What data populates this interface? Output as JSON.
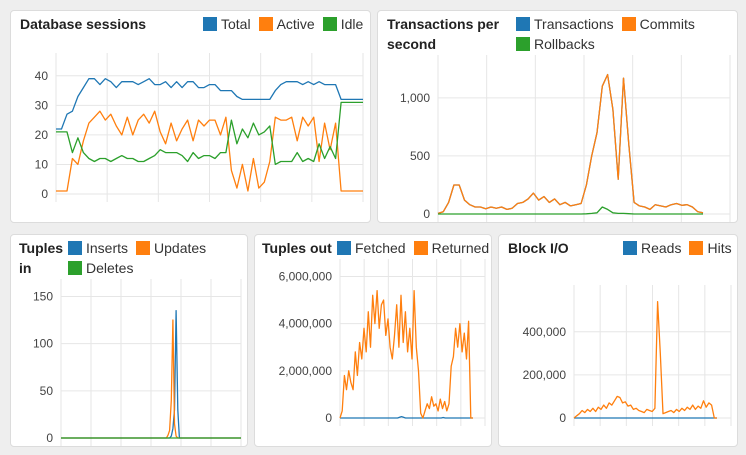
{
  "colors": {
    "blue": "#1f77b4",
    "orange": "#ff7f0e",
    "green": "#2ca02c"
  },
  "chart_data": [
    {
      "id": "sessions",
      "type": "line",
      "title": "Database sessions",
      "ylim": [
        0,
        45
      ],
      "yticks": [
        {
          "v": 0,
          "label": "0"
        },
        {
          "v": 10,
          "label": "10"
        },
        {
          "v": 20,
          "label": "20"
        },
        {
          "v": 30,
          "label": "30"
        },
        {
          "v": 40,
          "label": "40"
        }
      ],
      "grid": true,
      "legend_position": "top-right",
      "series": [
        {
          "name": "Total",
          "color": "#1f77b4",
          "values": [
            22,
            22,
            27,
            28,
            33,
            36,
            39,
            39,
            37,
            39,
            38,
            36,
            38,
            38,
            38,
            37,
            38,
            39,
            37,
            37,
            38,
            36,
            38,
            36,
            38,
            38,
            36,
            36,
            37,
            37,
            35,
            35,
            35,
            33,
            32,
            32,
            32,
            32,
            32,
            32,
            35,
            37,
            38,
            38,
            38,
            37,
            38,
            37,
            38,
            37,
            37,
            37,
            32,
            32,
            32,
            32,
            32
          ]
        },
        {
          "name": "Active",
          "color": "#ff7f0e",
          "values": [
            1,
            1,
            1,
            12,
            10,
            18,
            24,
            26,
            28,
            25,
            27,
            23,
            20,
            26,
            20,
            25,
            27,
            24,
            28,
            21,
            17,
            24,
            18,
            22,
            25,
            18,
            25,
            23,
            25,
            25,
            20,
            26,
            8,
            2,
            10,
            1,
            12,
            2,
            4,
            11,
            26,
            25,
            25,
            26,
            18,
            26,
            23,
            26,
            11,
            24,
            15,
            24,
            1,
            1,
            1,
            1,
            1
          ]
        },
        {
          "name": "Idle",
          "color": "#2ca02c",
          "values": [
            21,
            21,
            21,
            14,
            19,
            14,
            12,
            11,
            12,
            12,
            11,
            12,
            13,
            12,
            12,
            11,
            11,
            12,
            13,
            15,
            14,
            14,
            14,
            13,
            11,
            14,
            12,
            13,
            13,
            12,
            14,
            14,
            25,
            17,
            22,
            19,
            24,
            20,
            21,
            23,
            10,
            11,
            11,
            11,
            14,
            11,
            12,
            11,
            17,
            12,
            16,
            12,
            31,
            31,
            31,
            31,
            31
          ]
        }
      ]
    },
    {
      "id": "tps",
      "type": "line",
      "title": "Transactions per second",
      "ylim": [
        0,
        1300
      ],
      "yticks": [
        {
          "v": 0,
          "label": "0"
        },
        {
          "v": 500,
          "label": "500"
        },
        {
          "v": 1000,
          "label": "1,000"
        }
      ],
      "grid": true,
      "legend_position": "top-right",
      "series": [
        {
          "name": "Transactions",
          "color": "#1f77b4",
          "values": [
            5,
            20,
            100,
            250,
            250,
            120,
            80,
            60,
            60,
            45,
            60,
            50,
            60,
            40,
            50,
            90,
            100,
            130,
            180,
            120,
            150,
            100,
            130,
            80,
            100,
            70,
            80,
            90,
            250,
            500,
            700,
            1100,
            1200,
            900,
            300,
            1170,
            600,
            100,
            70,
            60,
            40,
            80,
            70,
            60,
            80,
            90,
            75,
            80,
            60,
            20,
            10
          ]
        },
        {
          "name": "Commits",
          "color": "#ff7f0e",
          "values": [
            5,
            20,
            100,
            250,
            250,
            120,
            80,
            60,
            60,
            45,
            60,
            50,
            60,
            40,
            50,
            90,
            100,
            130,
            180,
            120,
            150,
            100,
            130,
            80,
            100,
            70,
            80,
            90,
            250,
            500,
            700,
            1100,
            1200,
            900,
            300,
            1170,
            600,
            100,
            70,
            60,
            40,
            80,
            70,
            60,
            80,
            90,
            75,
            80,
            60,
            20,
            10
          ]
        },
        {
          "name": "Rollbacks",
          "color": "#2ca02c",
          "values": [
            0,
            0,
            0,
            0,
            0,
            0,
            0,
            0,
            0,
            0,
            0,
            0,
            0,
            0,
            0,
            0,
            0,
            0,
            0,
            0,
            0,
            0,
            0,
            0,
            0,
            0,
            0,
            0,
            2,
            5,
            10,
            60,
            40,
            10,
            5,
            5,
            3,
            0,
            0,
            0,
            0,
            0,
            0,
            0,
            0,
            0,
            0,
            0,
            0,
            0,
            0
          ]
        }
      ]
    },
    {
      "id": "tuples_in",
      "type": "line",
      "title": "Tuples in",
      "ylim": [
        0,
        160
      ],
      "yticks": [
        {
          "v": 0,
          "label": "0"
        },
        {
          "v": 50,
          "label": "50"
        },
        {
          "v": 100,
          "label": "100"
        },
        {
          "v": 150,
          "label": "150"
        }
      ],
      "grid": true,
      "legend_position": "top-right",
      "series": [
        {
          "name": "Inserts",
          "color": "#1f77b4",
          "values": [
            0,
            0,
            0,
            0,
            0,
            0,
            0,
            0,
            0,
            0,
            0,
            0,
            0,
            0,
            0,
            0,
            0,
            0,
            0,
            0,
            0,
            0,
            0,
            0,
            0,
            0,
            0,
            0,
            0,
            0,
            0,
            0,
            0,
            0,
            0,
            0,
            0,
            0,
            0,
            0,
            0,
            0,
            0,
            0,
            0,
            0,
            0,
            0,
            0,
            0,
            0,
            0,
            0,
            0,
            0,
            0,
            0,
            0,
            0,
            0,
            0,
            0,
            0,
            0,
            0,
            0,
            0,
            0,
            2,
            10,
            30,
            135,
            30,
            0,
            0,
            0,
            0,
            0,
            0,
            0,
            0,
            0,
            0,
            0,
            0,
            0,
            0,
            0,
            0,
            0,
            0,
            0,
            0,
            0,
            0,
            0,
            0,
            0,
            0,
            0,
            0,
            0,
            0,
            0,
            0,
            0,
            0,
            0,
            0,
            0,
            0,
            0
          ]
        },
        {
          "name": "Updates",
          "color": "#ff7f0e",
          "values": [
            0,
            0,
            0,
            0,
            0,
            0,
            0,
            0,
            0,
            0,
            0,
            0,
            0,
            0,
            0,
            0,
            0,
            0,
            0,
            0,
            0,
            0,
            0,
            0,
            0,
            0,
            0,
            0,
            0,
            0,
            0,
            0,
            0,
            0,
            0,
            0,
            0,
            0,
            0,
            0,
            0,
            0,
            0,
            0,
            0,
            0,
            0,
            0,
            0,
            0,
            0,
            0,
            0,
            0,
            0,
            0,
            0,
            0,
            0,
            0,
            0,
            0,
            0,
            0,
            0,
            0,
            3,
            8,
            40,
            125,
            15,
            2,
            0,
            0,
            0,
            0,
            0,
            0,
            0,
            0,
            0,
            0,
            0,
            0,
            0,
            0,
            0,
            0,
            0,
            0,
            0,
            0,
            0,
            0,
            0,
            0,
            0,
            0,
            0,
            0,
            0,
            0,
            0,
            0,
            0,
            0,
            0,
            0,
            0,
            0,
            0,
            0
          ]
        },
        {
          "name": "Deletes",
          "color": "#2ca02c",
          "values": [
            0,
            0,
            0,
            0,
            0,
            0,
            0,
            0,
            0,
            0,
            0,
            0,
            0,
            0,
            0,
            0,
            0,
            0,
            0,
            0,
            0,
            0,
            0,
            0,
            0,
            0,
            0,
            0,
            0,
            0,
            0,
            0,
            0,
            0,
            0,
            0,
            0,
            0,
            0,
            0,
            0,
            0,
            0,
            0,
            0,
            0,
            0,
            0,
            0,
            0,
            0,
            0,
            0,
            0,
            0,
            0,
            0,
            0,
            0,
            0,
            0,
            0,
            0,
            0,
            0,
            0,
            0,
            0,
            0,
            0,
            0,
            0,
            0,
            0,
            0,
            0,
            0,
            0,
            0,
            0,
            0,
            0,
            0,
            0,
            0,
            0,
            0,
            0,
            0,
            0,
            0,
            0,
            0,
            0,
            0,
            0,
            0,
            0,
            0,
            0,
            0,
            0,
            0,
            0,
            0,
            0,
            0,
            0,
            0,
            0,
            0,
            0
          ]
        }
      ]
    },
    {
      "id": "tuples_out",
      "type": "line",
      "title": "Tuples out",
      "ylim": [
        0,
        6400000
      ],
      "yticks": [
        {
          "v": 0,
          "label": "0"
        },
        {
          "v": 2000000,
          "label": "2,000,000"
        },
        {
          "v": 4000000,
          "label": "4,000,000"
        },
        {
          "v": 6000000,
          "label": "6,000,000"
        }
      ],
      "grid": true,
      "legend_position": "top-right",
      "series": [
        {
          "name": "Fetched",
          "color": "#1f77b4",
          "values": [
            0,
            0,
            0,
            0,
            0,
            0,
            0,
            0,
            0,
            0,
            0,
            0,
            0,
            0,
            0,
            0,
            0,
            0,
            0,
            0,
            0,
            0,
            0,
            0,
            0,
            0,
            0,
            0,
            0,
            0,
            30000,
            60000,
            30000,
            0,
            0,
            0,
            0,
            0,
            0,
            0,
            0,
            0,
            0,
            0,
            0,
            0,
            0,
            0,
            0,
            0,
            0,
            0,
            20000,
            0,
            0,
            0,
            0,
            0,
            0,
            0,
            0,
            0,
            0,
            0,
            0,
            0,
            0,
            0
          ]
        },
        {
          "name": "Returned",
          "color": "#ff7f0e",
          "values": [
            0,
            300000,
            1800000,
            1200000,
            2000000,
            1500000,
            1200000,
            2800000,
            1800000,
            3200000,
            2500000,
            3800000,
            2800000,
            4500000,
            3000000,
            5200000,
            4000000,
            5400000,
            3800000,
            4800000,
            5000000,
            3500000,
            4200000,
            3000000,
            2500000,
            3500000,
            4800000,
            3000000,
            5200000,
            3200000,
            4500000,
            2800000,
            3800000,
            2500000,
            5400000,
            3000000,
            2000000,
            200000,
            0,
            300000,
            600000,
            400000,
            900000,
            500000,
            600000,
            300000,
            800000,
            400000,
            700000,
            300000,
            600000,
            2200000,
            2600000,
            3800000,
            3000000,
            4000000,
            2800000,
            3600000,
            2500000,
            4100000,
            0,
            0
          ]
        }
      ]
    },
    {
      "id": "block_io",
      "type": "line",
      "title": "Block I/O",
      "ylim": [
        0,
        580000
      ],
      "yticks": [
        {
          "v": 0,
          "label": "0"
        },
        {
          "v": 200000,
          "label": "200,000"
        },
        {
          "v": 400000,
          "label": "400,000"
        }
      ],
      "grid": true,
      "legend_position": "top-right",
      "series": [
        {
          "name": "Reads",
          "color": "#1f77b4",
          "values": [
            0,
            0,
            0,
            0,
            0,
            0,
            0,
            0,
            0,
            0,
            0,
            0,
            0,
            0,
            0,
            0,
            0,
            0,
            0,
            0,
            0,
            0,
            0,
            0,
            0,
            0,
            0,
            0,
            0,
            0,
            0,
            0,
            0,
            0,
            0,
            0,
            0,
            0,
            0,
            0,
            0,
            0,
            0,
            0,
            0,
            0,
            0,
            0,
            0,
            0,
            0,
            0,
            0,
            0,
            0,
            0,
            0,
            0,
            0,
            0,
            0,
            0,
            0,
            0,
            0,
            0,
            0,
            0,
            0,
            0
          ]
        },
        {
          "name": "Hits",
          "color": "#ff7f0e",
          "values": [
            0,
            10000,
            20000,
            35000,
            25000,
            40000,
            30000,
            45000,
            30000,
            50000,
            40000,
            60000,
            45000,
            70000,
            60000,
            80000,
            100000,
            95000,
            70000,
            75000,
            55000,
            60000,
            40000,
            45000,
            35000,
            30000,
            25000,
            40000,
            35000,
            30000,
            45000,
            540000,
            300000,
            20000,
            25000,
            30000,
            35000,
            25000,
            40000,
            30000,
            45000,
            35000,
            50000,
            40000,
            60000,
            40000,
            55000,
            45000,
            80000,
            50000,
            70000,
            60000,
            0,
            0
          ]
        }
      ]
    }
  ]
}
